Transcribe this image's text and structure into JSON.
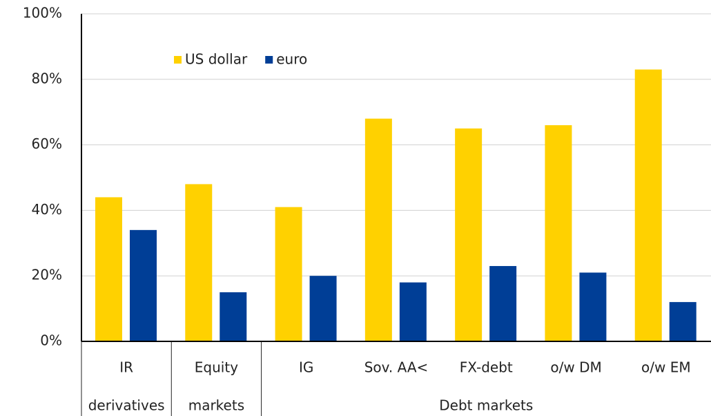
{
  "chart_data": {
    "type": "bar",
    "groups": [
      {
        "label": "derivatives",
        "categories": [
          "IR"
        ]
      },
      {
        "label": "markets",
        "categories": [
          "Equity"
        ]
      },
      {
        "label": "Debt markets",
        "categories": [
          "IG",
          "Sov. AA<",
          "FX-debt",
          "o/w DM",
          "o/w EM"
        ]
      }
    ],
    "series": [
      {
        "name": "US dollar",
        "color": "#ffd100",
        "values": [
          44,
          48,
          41,
          68,
          65,
          66,
          83
        ]
      },
      {
        "name": "euro",
        "color": "#003e96",
        "values": [
          34,
          15,
          20,
          18,
          23,
          21,
          12
        ]
      }
    ],
    "ylim": [
      0,
      100
    ],
    "yticks": [
      {
        "value": 0,
        "label": "0%"
      },
      {
        "value": 20,
        "label": "20%"
      },
      {
        "value": 40,
        "label": "40%"
      },
      {
        "value": 60,
        "label": "60%"
      },
      {
        "value": 80,
        "label": "80%"
      },
      {
        "value": 100,
        "label": "100%"
      }
    ],
    "grid": true,
    "legend": "top"
  }
}
